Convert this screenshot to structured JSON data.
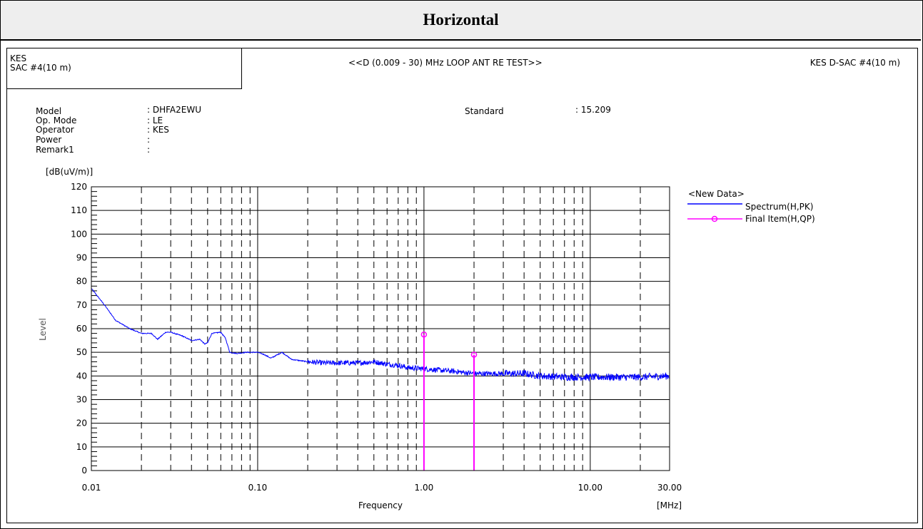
{
  "page": {
    "section_title": "Horizontal"
  },
  "header": {
    "site_line1": "KES",
    "site_line2": "SAC #4(10 m)",
    "test_title": "<<D (0.009 - 30) MHz LOOP ANT RE TEST>>",
    "site_right": "KES D-SAC #4(10 m)"
  },
  "info": {
    "fields": [
      {
        "label": "Model",
        "value": ": DHFA2EWU"
      },
      {
        "label": "Op. Mode",
        "value": ": LE"
      },
      {
        "label": "Operator",
        "value": ": KES"
      },
      {
        "label": "Power",
        "value": ":"
      },
      {
        "label": "Remark1",
        "value": ":"
      }
    ],
    "standard_label": "Standard",
    "standard_value": ": 15.209"
  },
  "chart_data": {
    "type": "line",
    "xscale": "log",
    "xlim": [
      0.01,
      30
    ],
    "ylim": [
      0,
      120
    ],
    "xlabel": "Frequency",
    "x_unit": "[MHz]",
    "ylabel": "Level",
    "y_unit": "[dB(uV/m)]",
    "x_tick_labels": [
      {
        "value": 0.01,
        "label": "0.01"
      },
      {
        "value": 0.1,
        "label": "0.10"
      },
      {
        "value": 1,
        "label": "1.00"
      },
      {
        "value": 10,
        "label": "10.00"
      },
      {
        "value": 30,
        "label": "30.00"
      }
    ],
    "y_ticks": [
      0,
      10,
      20,
      30,
      40,
      50,
      60,
      70,
      80,
      90,
      100,
      110,
      120
    ],
    "grid": true,
    "legend_title": "<New Data>",
    "legend_position": "right",
    "series": [
      {
        "name": "Spectrum(H,PK)",
        "color": "#0000ff",
        "points": [
          [
            0.01,
            77
          ],
          [
            0.012,
            70
          ],
          [
            0.014,
            63.5
          ],
          [
            0.017,
            60
          ],
          [
            0.02,
            58
          ],
          [
            0.023,
            58
          ],
          [
            0.025,
            55.5
          ],
          [
            0.028,
            58.5
          ],
          [
            0.03,
            58.5
          ],
          [
            0.035,
            57
          ],
          [
            0.04,
            55
          ],
          [
            0.045,
            55.5
          ],
          [
            0.048,
            53.5
          ],
          [
            0.05,
            54
          ],
          [
            0.053,
            58
          ],
          [
            0.06,
            58.5
          ],
          [
            0.064,
            56
          ],
          [
            0.068,
            50
          ],
          [
            0.075,
            49.5
          ],
          [
            0.085,
            50
          ],
          [
            0.1,
            50
          ],
          [
            0.11,
            49
          ],
          [
            0.12,
            47.5
          ],
          [
            0.14,
            50
          ],
          [
            0.16,
            47
          ],
          [
            0.2,
            46
          ],
          [
            0.25,
            45.5
          ],
          [
            0.3,
            45.5
          ],
          [
            0.4,
            45.5
          ],
          [
            0.5,
            46
          ],
          [
            0.6,
            45
          ],
          [
            0.7,
            44.5
          ],
          [
            0.8,
            43.5
          ],
          [
            1.0,
            43
          ],
          [
            1.5,
            42
          ],
          [
            2.0,
            41
          ],
          [
            3.0,
            41
          ],
          [
            4.0,
            41
          ],
          [
            5.0,
            40
          ],
          [
            7.0,
            39.5
          ],
          [
            10.0,
            39.5
          ],
          [
            15.0,
            39.5
          ],
          [
            20.0,
            39.5
          ],
          [
            30.0,
            40
          ]
        ]
      },
      {
        "name": "Final Item(H,QP)",
        "color": "#ff00ff",
        "type": "stem",
        "points": [
          [
            1.0,
            57.5
          ],
          [
            2.0,
            49
          ]
        ]
      }
    ]
  }
}
